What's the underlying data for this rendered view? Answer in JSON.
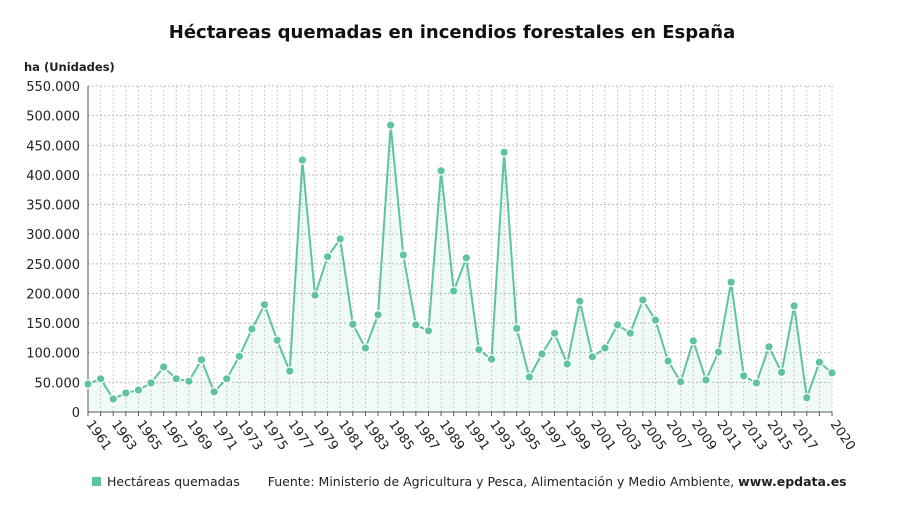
{
  "chart_data": {
    "type": "line",
    "title": "Héctareas quemadas en incendios forestales en España",
    "ylabel": "ha (Unidades)",
    "xlabel": "",
    "ylim": [
      0,
      550000
    ],
    "yticks": [
      "0",
      "50.000",
      "100.000",
      "150.000",
      "200.000",
      "250.000",
      "300.000",
      "350.000",
      "400.000",
      "450.000",
      "500.000",
      "550.000"
    ],
    "x": [
      1961,
      1962,
      1963,
      1964,
      1965,
      1966,
      1967,
      1968,
      1969,
      1970,
      1971,
      1972,
      1973,
      1974,
      1975,
      1976,
      1977,
      1978,
      1979,
      1980,
      1981,
      1982,
      1983,
      1984,
      1985,
      1986,
      1987,
      1988,
      1989,
      1990,
      1991,
      1992,
      1993,
      1994,
      1995,
      1996,
      1997,
      1998,
      1999,
      2000,
      2001,
      2002,
      2003,
      2004,
      2005,
      2006,
      2007,
      2008,
      2009,
      2010,
      2011,
      2012,
      2013,
      2014,
      2015,
      2016,
      2017,
      2018,
      2019,
      2020
    ],
    "xticks": [
      "1961",
      "1963",
      "1965",
      "1967",
      "1969",
      "1971",
      "1973",
      "1975",
      "1977",
      "1979",
      "1981",
      "1983",
      "1985",
      "1987",
      "1989",
      "1991",
      "1993",
      "1995",
      "1997",
      "1999",
      "2001",
      "2003",
      "2005",
      "2007",
      "2009",
      "2011",
      "2013",
      "2015",
      "2017",
      "2020"
    ],
    "series": [
      {
        "name": "Hectáreas quemadas",
        "color": "#5ec49e",
        "values": [
          47000,
          56000,
          22000,
          32000,
          37000,
          49000,
          76000,
          56000,
          52000,
          88000,
          34000,
          56000,
          94000,
          140000,
          181000,
          121000,
          69000,
          425000,
          197000,
          262000,
          292000,
          148000,
          108000,
          164000,
          484000,
          265000,
          147000,
          137000,
          407000,
          204000,
          260000,
          105000,
          89000,
          438000,
          141000,
          59000,
          98000,
          133000,
          81000,
          187000,
          93000,
          108000,
          147000,
          133000,
          189000,
          155000,
          86000,
          51000,
          120000,
          54000,
          101000,
          219000,
          61000,
          49000,
          110000,
          67000,
          179000,
          24000,
          84000,
          66000
        ]
      }
    ],
    "grid": true,
    "legend": "bottom-left"
  },
  "footer": {
    "legend_label": "Hectáreas quemadas",
    "source_prefix": "Fuente: Ministerio de Agricultura y Pesca, Alimentación y Medio Ambiente, ",
    "source_site": "www.epdata.es"
  }
}
